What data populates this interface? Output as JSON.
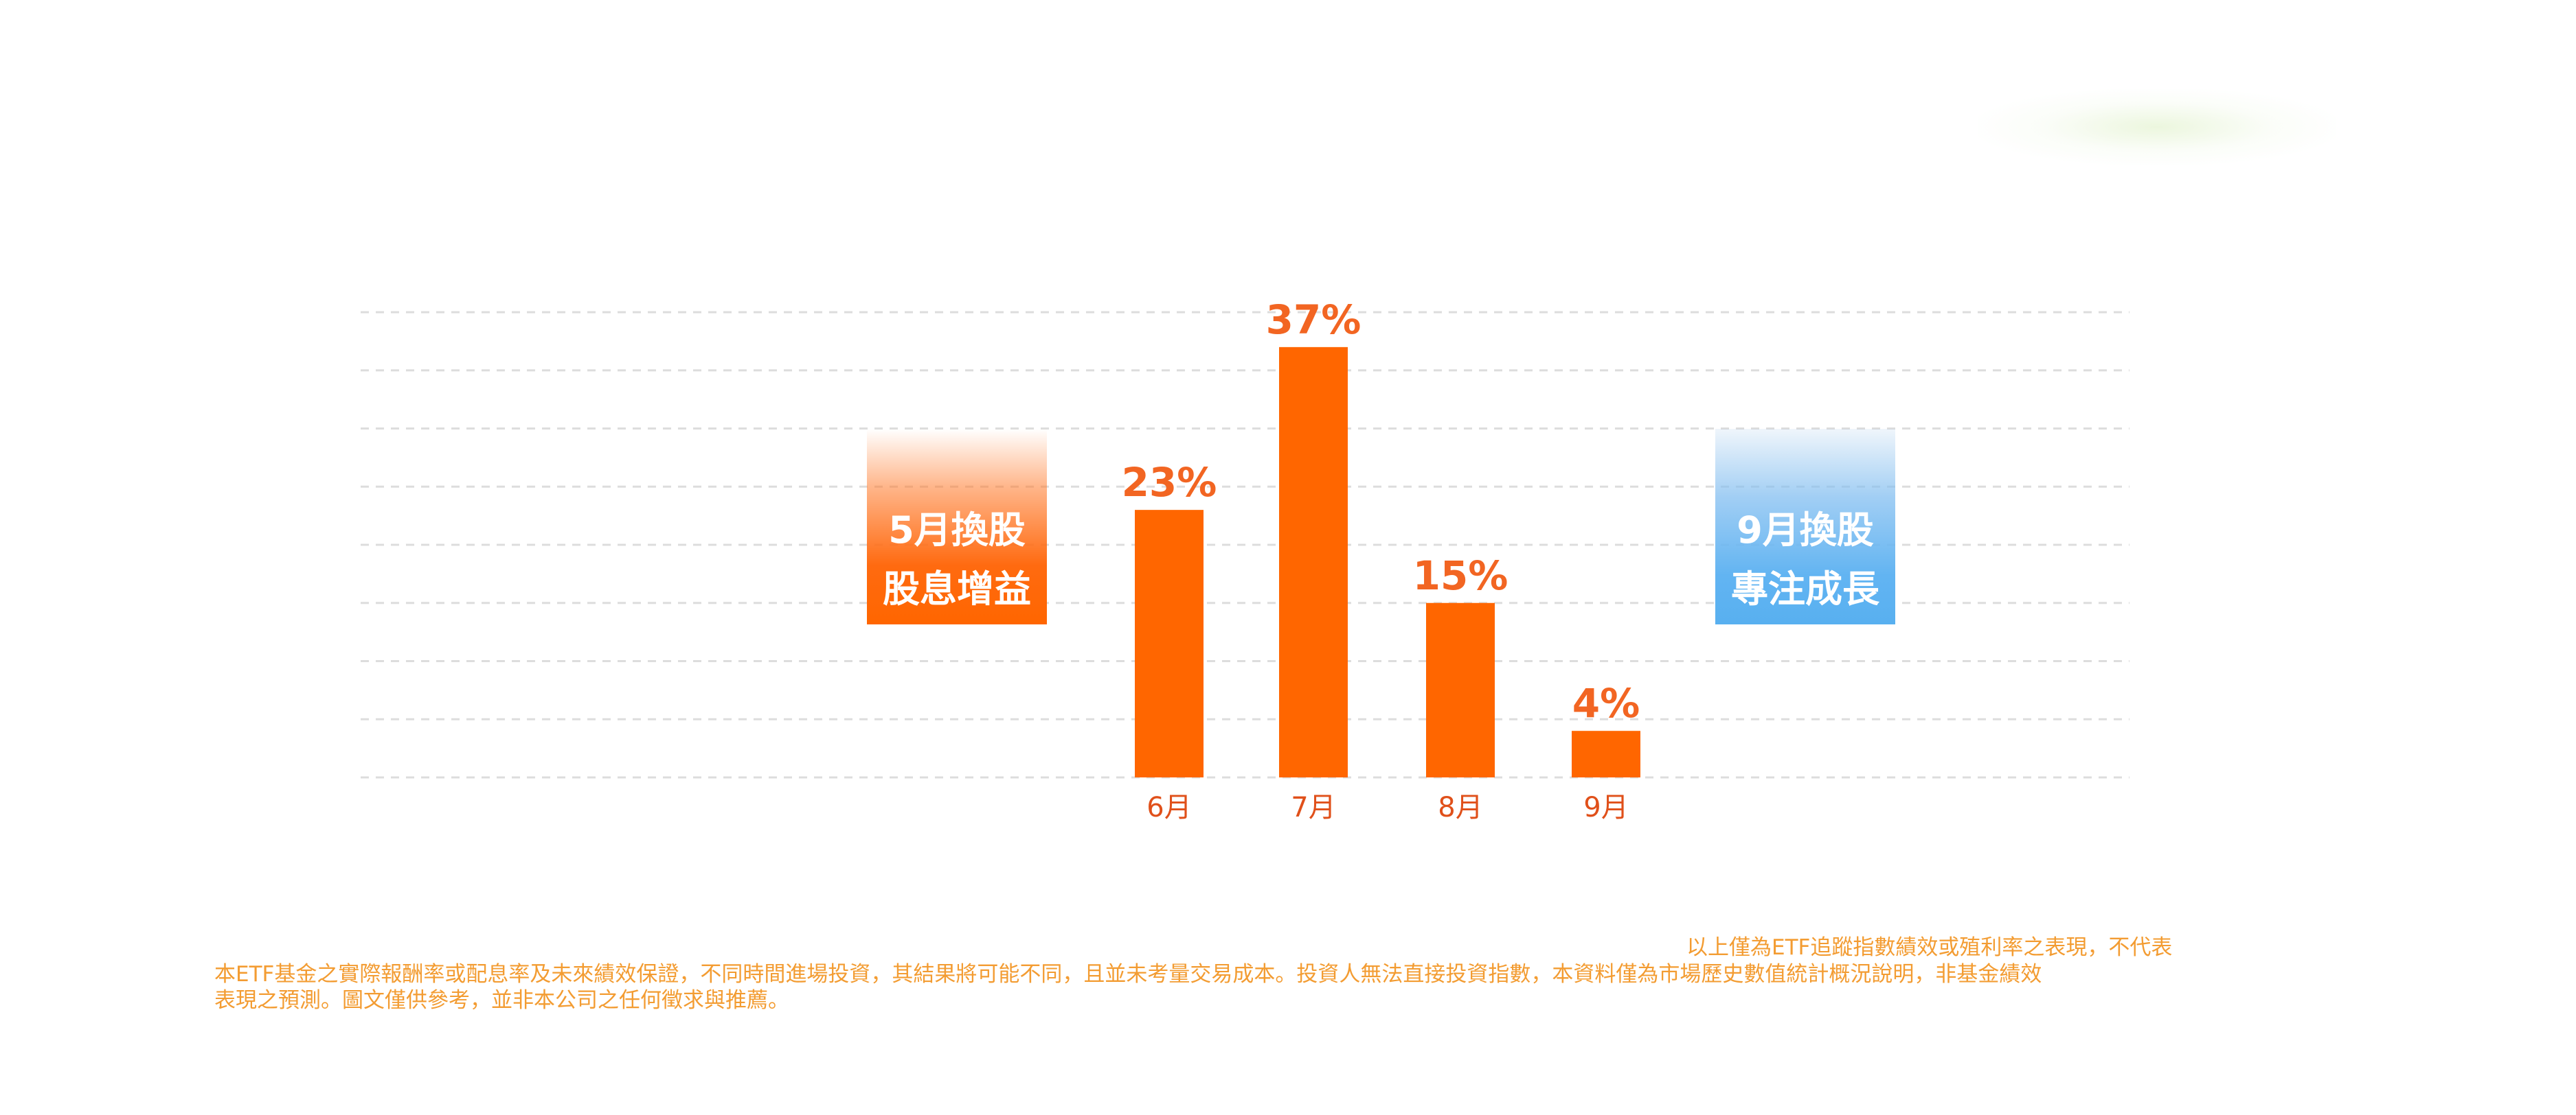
{
  "chart_data": {
    "type": "bar",
    "categories": [
      "6月",
      "7月",
      "8月",
      "9月"
    ],
    "values": [
      23,
      37,
      15,
      4
    ],
    "value_labels": [
      "23%",
      "37%",
      "15%",
      "4%"
    ],
    "ylim": [
      0,
      40
    ],
    "grid": true,
    "bar_color": "#ff6600",
    "title": "",
    "xlabel": "",
    "ylabel": ""
  },
  "annotations": {
    "may_rebalance": {
      "line1": "5月換股",
      "line2": "股息增益",
      "color": "#ff6600"
    },
    "sep_rebalance": {
      "line1": "9月換股",
      "line2": "專注成長",
      "color": "#58b0f0"
    }
  },
  "disclaimer": {
    "line1": "以上僅為ETF追蹤指數績效或殖利率之表現，不代表",
    "line2": "本ETF基金之實際報酬率或配息率及未來績效保證，不同時間進場投資，其結果將可能不同，且並未考量交易成本。投資人無法直接投資指數，本資料僅為市場歷史數值統計概況說明，非基金績效",
    "line3": "表現之預測。圖文僅供參考，並非本公司之任何徵求與推薦。"
  }
}
